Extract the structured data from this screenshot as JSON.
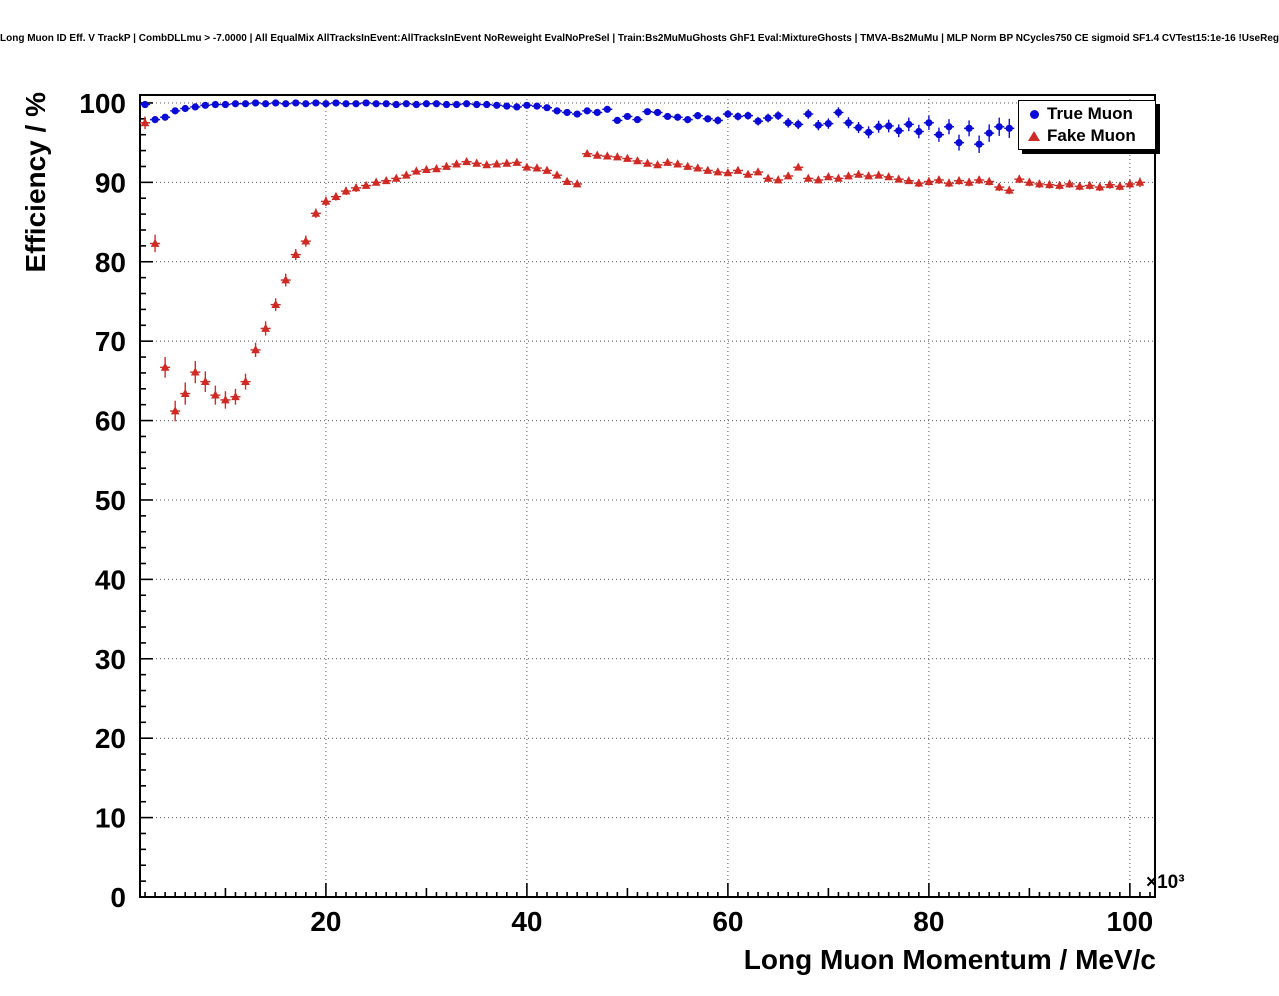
{
  "chart_data": {
    "type": "scatter",
    "title": "Long Muon ID Eff. V TrackP | CombDLLmu > -7.0000 | All EqualMix AllTracksInEvent:AllTracksInEvent NoReweight EvalNoPreSel | Train:Bs2MuMuGhosts GhF1 Eval:MixtureGhosts | TMVA-Bs2MuMu | MLP Norm BP NCycles750 CE sigmoid SF1.4 CVTest15:1e-16 !UseReg",
    "xlabel": "Long Muon Momentum / MeV/c",
    "ylabel": "Efficiency / %",
    "x_exponent": "×10³",
    "xlim": [
      1.5,
      102.5
    ],
    "ylim": [
      0,
      101
    ],
    "x_ticks": [
      20,
      40,
      60,
      80,
      100
    ],
    "y_ticks": [
      0,
      10,
      20,
      30,
      40,
      50,
      60,
      70,
      80,
      90,
      100
    ],
    "grid": true,
    "legend_position": "top-right",
    "series": [
      {
        "name": "True Muon",
        "marker": "circle",
        "color": "#0b0bd8",
        "points": [
          [
            2,
            99.8,
            0.1
          ],
          [
            3,
            97.9,
            0.3
          ],
          [
            4,
            98.2,
            0.3
          ],
          [
            5,
            99.0,
            0.2
          ],
          [
            6,
            99.3,
            0.2
          ],
          [
            7,
            99.5,
            0.1
          ],
          [
            8,
            99.7,
            0.1
          ],
          [
            9,
            99.8,
            0.1
          ],
          [
            10,
            99.8,
            0.1
          ],
          [
            11,
            99.9,
            0.1
          ],
          [
            12,
            99.9,
            0.1
          ],
          [
            13,
            100.0,
            0.05
          ],
          [
            14,
            99.9,
            0.05
          ],
          [
            15,
            100.0,
            0.05
          ],
          [
            16,
            99.9,
            0.05
          ],
          [
            17,
            100.0,
            0.05
          ],
          [
            18,
            99.9,
            0.05
          ],
          [
            19,
            100.0,
            0.05
          ],
          [
            20,
            99.9,
            0.05
          ],
          [
            21,
            100.0,
            0.05
          ],
          [
            22,
            99.9,
            0.05
          ],
          [
            23,
            99.9,
            0.05
          ],
          [
            24,
            100.0,
            0.05
          ],
          [
            25,
            99.9,
            0.05
          ],
          [
            26,
            99.9,
            0.1
          ],
          [
            27,
            99.8,
            0.1
          ],
          [
            28,
            99.9,
            0.1
          ],
          [
            29,
            99.8,
            0.1
          ],
          [
            30,
            99.9,
            0.1
          ],
          [
            31,
            99.9,
            0.1
          ],
          [
            32,
            99.8,
            0.1
          ],
          [
            33,
            99.8,
            0.1
          ],
          [
            34,
            99.9,
            0.1
          ],
          [
            35,
            99.8,
            0.15
          ],
          [
            36,
            99.8,
            0.15
          ],
          [
            37,
            99.7,
            0.15
          ],
          [
            38,
            99.6,
            0.15
          ],
          [
            39,
            99.5,
            0.2
          ],
          [
            40,
            99.7,
            0.2
          ],
          [
            41,
            99.6,
            0.2
          ],
          [
            42,
            99.4,
            0.25
          ],
          [
            43,
            99.0,
            0.3
          ],
          [
            44,
            98.8,
            0.3
          ],
          [
            45,
            98.6,
            0.3
          ],
          [
            46,
            99.0,
            0.3
          ],
          [
            47,
            98.8,
            0.3
          ],
          [
            48,
            99.2,
            0.3
          ],
          [
            49,
            97.8,
            0.35
          ],
          [
            50,
            98.3,
            0.35
          ],
          [
            51,
            97.9,
            0.4
          ],
          [
            52,
            98.9,
            0.4
          ],
          [
            53,
            98.8,
            0.4
          ],
          [
            54,
            98.3,
            0.4
          ],
          [
            55,
            98.2,
            0.4
          ],
          [
            56,
            97.9,
            0.45
          ],
          [
            57,
            98.4,
            0.45
          ],
          [
            58,
            98.0,
            0.45
          ],
          [
            59,
            97.8,
            0.5
          ],
          [
            60,
            98.6,
            0.5
          ],
          [
            61,
            98.3,
            0.5
          ],
          [
            62,
            98.4,
            0.5
          ],
          [
            63,
            97.7,
            0.55
          ],
          [
            64,
            98.1,
            0.55
          ],
          [
            65,
            98.4,
            0.55
          ],
          [
            66,
            97.5,
            0.6
          ],
          [
            67,
            97.3,
            0.6
          ],
          [
            68,
            98.6,
            0.6
          ],
          [
            69,
            97.2,
            0.65
          ],
          [
            70,
            97.4,
            0.65
          ],
          [
            71,
            98.8,
            0.65
          ],
          [
            72,
            97.5,
            0.7
          ],
          [
            73,
            96.9,
            0.7
          ],
          [
            74,
            96.3,
            0.75
          ],
          [
            75,
            97.0,
            0.75
          ],
          [
            76,
            97.1,
            0.8
          ],
          [
            77,
            96.5,
            0.8
          ],
          [
            78,
            97.3,
            0.85
          ],
          [
            79,
            96.4,
            0.85
          ],
          [
            80,
            97.5,
            0.9
          ],
          [
            81,
            96.0,
            0.9
          ],
          [
            82,
            97.0,
            0.95
          ],
          [
            83,
            95.0,
            1.0
          ],
          [
            84,
            96.8,
            1.0
          ],
          [
            85,
            94.8,
            1.1
          ],
          [
            86,
            96.2,
            1.1
          ],
          [
            87,
            97.0,
            1.15
          ],
          [
            88,
            96.8,
            1.2
          ]
        ]
      },
      {
        "name": "Fake Muon",
        "marker": "triangle",
        "color": "#d02a24",
        "points": [
          [
            2,
            97.5,
            0.8
          ],
          [
            3,
            82.3,
            1.1
          ],
          [
            4,
            66.7,
            1.3
          ],
          [
            5,
            61.2,
            1.3
          ],
          [
            6,
            63.4,
            1.4
          ],
          [
            7,
            66.1,
            1.4
          ],
          [
            8,
            64.9,
            1.3
          ],
          [
            9,
            63.2,
            1.2
          ],
          [
            10,
            62.6,
            1.1
          ],
          [
            11,
            63.0,
            1.0
          ],
          [
            12,
            64.9,
            1.0
          ],
          [
            13,
            68.9,
            0.9
          ],
          [
            14,
            71.6,
            0.9
          ],
          [
            15,
            74.6,
            0.8
          ],
          [
            16,
            77.7,
            0.8
          ],
          [
            17,
            80.9,
            0.7
          ],
          [
            18,
            82.6,
            0.7
          ],
          [
            19,
            86.1,
            0.6
          ],
          [
            20,
            87.6,
            0.6
          ],
          [
            21,
            88.2,
            0.5
          ],
          [
            22,
            88.9,
            0.5
          ],
          [
            23,
            89.3,
            0.5
          ],
          [
            24,
            89.6,
            0.4
          ],
          [
            25,
            90.0,
            0.4
          ],
          [
            26,
            90.2,
            0.4
          ],
          [
            27,
            90.5,
            0.4
          ],
          [
            28,
            90.9,
            0.4
          ],
          [
            29,
            91.4,
            0.4
          ],
          [
            30,
            91.6,
            0.4
          ],
          [
            31,
            91.7,
            0.3
          ],
          [
            32,
            92.0,
            0.3
          ],
          [
            33,
            92.3,
            0.3
          ],
          [
            34,
            92.6,
            0.3
          ],
          [
            35,
            92.4,
            0.3
          ],
          [
            36,
            92.2,
            0.3
          ],
          [
            37,
            92.3,
            0.3
          ],
          [
            38,
            92.4,
            0.3
          ],
          [
            39,
            92.5,
            0.3
          ],
          [
            40,
            91.9,
            0.3
          ],
          [
            41,
            91.8,
            0.3
          ],
          [
            42,
            91.5,
            0.3
          ],
          [
            43,
            90.9,
            0.3
          ],
          [
            44,
            90.1,
            0.4
          ],
          [
            45,
            89.8,
            0.4
          ],
          [
            46,
            93.6,
            0.4
          ],
          [
            47,
            93.4,
            0.4
          ],
          [
            48,
            93.3,
            0.4
          ],
          [
            49,
            93.2,
            0.4
          ],
          [
            50,
            93.0,
            0.4
          ],
          [
            51,
            92.7,
            0.4
          ],
          [
            52,
            92.4,
            0.4
          ],
          [
            53,
            92.2,
            0.4
          ],
          [
            54,
            92.5,
            0.4
          ],
          [
            55,
            92.3,
            0.4
          ],
          [
            56,
            92.0,
            0.4
          ],
          [
            57,
            91.8,
            0.4
          ],
          [
            58,
            91.5,
            0.4
          ],
          [
            59,
            91.3,
            0.4
          ],
          [
            60,
            91.2,
            0.4
          ],
          [
            61,
            91.5,
            0.4
          ],
          [
            62,
            91.0,
            0.4
          ],
          [
            63,
            91.3,
            0.4
          ],
          [
            64,
            90.5,
            0.4
          ],
          [
            65,
            90.3,
            0.4
          ],
          [
            66,
            90.8,
            0.4
          ],
          [
            67,
            91.9,
            0.4
          ],
          [
            68,
            90.5,
            0.4
          ],
          [
            69,
            90.3,
            0.4
          ],
          [
            70,
            90.7,
            0.4
          ],
          [
            71,
            90.5,
            0.4
          ],
          [
            72,
            90.8,
            0.4
          ],
          [
            73,
            91.0,
            0.4
          ],
          [
            74,
            90.8,
            0.4
          ],
          [
            75,
            90.9,
            0.4
          ],
          [
            76,
            90.7,
            0.4
          ],
          [
            77,
            90.4,
            0.4
          ],
          [
            78,
            90.2,
            0.4
          ],
          [
            79,
            89.9,
            0.5
          ],
          [
            80,
            90.1,
            0.5
          ],
          [
            81,
            90.3,
            0.5
          ],
          [
            82,
            89.9,
            0.5
          ],
          [
            83,
            90.2,
            0.5
          ],
          [
            84,
            90.0,
            0.5
          ],
          [
            85,
            90.3,
            0.5
          ],
          [
            86,
            90.1,
            0.5
          ],
          [
            87,
            89.4,
            0.5
          ],
          [
            88,
            89.0,
            0.5
          ],
          [
            89,
            90.4,
            0.5
          ],
          [
            90,
            90.0,
            0.5
          ],
          [
            91,
            89.8,
            0.5
          ],
          [
            92,
            89.7,
            0.5
          ],
          [
            93,
            89.6,
            0.5
          ],
          [
            94,
            89.8,
            0.5
          ],
          [
            95,
            89.5,
            0.5
          ],
          [
            96,
            89.6,
            0.5
          ],
          [
            97,
            89.4,
            0.5
          ],
          [
            98,
            89.7,
            0.5
          ],
          [
            99,
            89.5,
            0.5
          ],
          [
            100,
            89.8,
            0.6
          ],
          [
            101,
            90.0,
            0.6
          ]
        ]
      }
    ]
  }
}
